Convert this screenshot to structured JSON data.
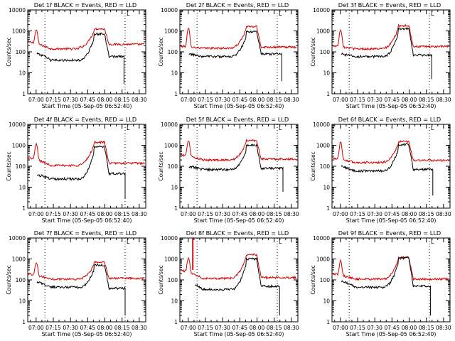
{
  "figure": {
    "colors": {
      "events": "#000000",
      "lld": "#d40000",
      "axis": "#000000",
      "background": "#ffffff"
    }
  },
  "chart_data": [
    {
      "type": "line",
      "detector": "1f",
      "title": "Det 1f BLACK = Events, RED = LLD",
      "xlabel": "Start Time (05-Sep-05 06:52:40)",
      "ylabel": "Counts/sec",
      "x_ticks": [
        "07:00",
        "07:15",
        "07:30",
        "07:45",
        "08:00",
        "08:15",
        "08:30"
      ],
      "x_tick_minutes": [
        7.33,
        22.33,
        37.33,
        52.33,
        67.33,
        82.33,
        97.33
      ],
      "xlim_minutes": [
        0,
        103
      ],
      "y_ticks": [
        "1",
        "10",
        "100",
        "1000",
        "10000"
      ],
      "ylim": [
        1,
        10000
      ],
      "yscale": "log",
      "marker_lines_minutes": [
        15,
        85
      ],
      "marker_label": "L",
      "lld_profile": {
        "base": 310,
        "flare_peak": 900,
        "flare_center_min": 7.5,
        "plateau": 1250,
        "plateau_start": 58,
        "plateau_end": 67,
        "floor": 140,
        "tail": 230,
        "end_min": 102
      },
      "events_profile": {
        "start_min": 8,
        "start_value": 85,
        "floor": 40,
        "plateau": 720,
        "plateau_start": 58,
        "plateau_end": 67,
        "tail": 60,
        "cutoff_min": 84,
        "drop_to": 3
      }
    },
    {
      "type": "line",
      "detector": "2f",
      "title": "Det 2f BLACK = Events, RED = LLD",
      "xlabel": "Start Time (05-Sep-05 06:52:40)",
      "ylabel": "Counts/sec",
      "x_ticks": [
        "07:00",
        "07:15",
        "07:30",
        "07:45",
        "08:00",
        "08:15",
        "08:30"
      ],
      "x_tick_minutes": [
        7.33,
        22.33,
        37.33,
        52.33,
        67.33,
        82.33,
        97.33
      ],
      "xlim_minutes": [
        0,
        103
      ],
      "y_ticks": [
        "1",
        "10",
        "100",
        "1000",
        "10000"
      ],
      "ylim": [
        1,
        10000
      ],
      "yscale": "log",
      "marker_lines_minutes": [
        15,
        85
      ],
      "marker_label": "L",
      "lld_profile": {
        "base": 190,
        "flare_peak": 1100,
        "flare_center_min": 7.5,
        "plateau": 1600,
        "plateau_start": 58,
        "plateau_end": 67,
        "floor": 150,
        "tail": 170,
        "end_min": 102
      },
      "events_profile": {
        "start_min": 8,
        "start_value": 80,
        "floor": 60,
        "plateau": 900,
        "plateau_start": 58,
        "plateau_end": 67,
        "tail": 80,
        "cutoff_min": 89,
        "drop_to": 4
      }
    },
    {
      "type": "line",
      "detector": "3f",
      "title": "Det 3f BLACK = Events, RED = LLD",
      "xlabel": "Start Time (05-Sep-05 06:52:40)",
      "ylabel": "Counts/sec",
      "x_ticks": [
        "07:00",
        "07:15",
        "07:30",
        "07:45",
        "08:00",
        "08:15",
        "08:30"
      ],
      "x_tick_minutes": [
        7.33,
        22.33,
        37.33,
        52.33,
        67.33,
        82.33,
        97.33
      ],
      "xlim_minutes": [
        0,
        103
      ],
      "y_ticks": [
        "1",
        "10",
        "100",
        "1000",
        "10000"
      ],
      "ylim": [
        1,
        10000
      ],
      "yscale": "log",
      "marker_lines_minutes": [
        15,
        85
      ],
      "marker_label": "L",
      "lld_profile": {
        "base": 200,
        "flare_peak": 1000,
        "flare_center_min": 7.5,
        "plateau": 1800,
        "plateau_start": 58,
        "plateau_end": 67,
        "floor": 140,
        "tail": 180,
        "end_min": 102
      },
      "events_profile": {
        "start_min": 8,
        "start_value": 80,
        "floor": 60,
        "plateau": 1300,
        "plateau_start": 58,
        "plateau_end": 67,
        "tail": 70,
        "cutoff_min": 87,
        "drop_to": 5
      }
    },
    {
      "type": "line",
      "detector": "4f",
      "title": "Det 4f BLACK = Events, RED = LLD",
      "xlabel": "Start Time (05-Sep-05 06:52:40)",
      "ylabel": "Counts/sec",
      "x_ticks": [
        "07:00",
        "07:15",
        "07:30",
        "07:45",
        "08:00",
        "08:15",
        "08:30"
      ],
      "x_tick_minutes": [
        7.33,
        22.33,
        37.33,
        52.33,
        67.33,
        82.33,
        97.33
      ],
      "xlim_minutes": [
        0,
        103
      ],
      "y_ticks": [
        "1",
        "10",
        "100",
        "1000",
        "10000"
      ],
      "ylim": [
        1,
        10000
      ],
      "yscale": "log",
      "marker_lines_minutes": [
        15,
        85
      ],
      "marker_label": "L",
      "lld_profile": {
        "base": 260,
        "flare_peak": 950,
        "flare_center_min": 7.5,
        "plateau": 1400,
        "plateau_start": 58,
        "plateau_end": 67,
        "floor": 110,
        "tail": 140,
        "end_min": 102
      },
      "events_profile": {
        "start_min": 8,
        "start_value": 40,
        "floor": 25,
        "plateau": 850,
        "plateau_start": 58,
        "plateau_end": 67,
        "tail": 45,
        "cutoff_min": 85,
        "drop_to": 3
      }
    },
    {
      "type": "line",
      "detector": "5f",
      "title": "Det 5f BLACK = Events, RED = LLD",
      "xlabel": "Start Time (05-Sep-05 06:52:40)",
      "ylabel": "Counts/sec",
      "x_ticks": [
        "07:00",
        "07:15",
        "07:30",
        "07:45",
        "08:00",
        "08:15",
        "08:30"
      ],
      "x_tick_minutes": [
        7.33,
        22.33,
        37.33,
        52.33,
        67.33,
        82.33,
        97.33
      ],
      "xlim_minutes": [
        0,
        103
      ],
      "y_ticks": [
        "1",
        "10",
        "100",
        "1000",
        "10000"
      ],
      "ylim": [
        1,
        10000
      ],
      "yscale": "log",
      "marker_lines_minutes": [
        15,
        85
      ],
      "marker_label": "L",
      "lld_profile": {
        "base": 360,
        "flare_peak": 1400,
        "flare_center_min": 7.5,
        "plateau": 1700,
        "plateau_start": 58,
        "plateau_end": 67,
        "floor": 200,
        "tail": 220,
        "end_min": 102
      },
      "events_profile": {
        "start_min": 8,
        "start_value": 100,
        "floor": 70,
        "plateau": 1000,
        "plateau_start": 58,
        "plateau_end": 67,
        "tail": 80,
        "cutoff_min": 90,
        "drop_to": 6
      }
    },
    {
      "type": "line",
      "detector": "6f",
      "title": "Det 6f BLACK = Events, RED = LLD",
      "xlabel": "Start Time (05-Sep-05 06:52:40)",
      "ylabel": "Counts/sec",
      "x_ticks": [
        "07:00",
        "07:15",
        "07:30",
        "07:45",
        "08:00",
        "08:15",
        "08:30"
      ],
      "x_tick_minutes": [
        7.33,
        22.33,
        37.33,
        52.33,
        67.33,
        82.33,
        97.33
      ],
      "xlim_minutes": [
        0,
        103
      ],
      "y_ticks": [
        "1",
        "10",
        "100",
        "1000",
        "10000"
      ],
      "ylim": [
        1,
        10000
      ],
      "yscale": "log",
      "marker_lines_minutes": [
        15,
        85
      ],
      "marker_label": "L",
      "lld_profile": {
        "base": 250,
        "flare_peak": 1200,
        "flare_center_min": 7.5,
        "plateau": 1500,
        "plateau_start": 58,
        "plateau_end": 67,
        "floor": 150,
        "tail": 190,
        "end_min": 102
      },
      "events_profile": {
        "start_min": 8,
        "start_value": 100,
        "floor": 60,
        "plateau": 1100,
        "plateau_start": 58,
        "plateau_end": 67,
        "tail": 70,
        "cutoff_min": 88,
        "drop_to": 4
      }
    },
    {
      "type": "line",
      "detector": "7f",
      "title": "Det 7f BLACK = Events, RED = LLD",
      "xlabel": "Start Time (05-Sep-05 06:52:40)",
      "ylabel": "Counts/sec",
      "x_ticks": [
        "07:00",
        "07:15",
        "07:30",
        "07:45",
        "08:00",
        "08:15",
        "08:30"
      ],
      "x_tick_minutes": [
        7.33,
        22.33,
        37.33,
        52.33,
        67.33,
        82.33,
        97.33
      ],
      "xlim_minutes": [
        0,
        103
      ],
      "y_ticks": [
        "1",
        "10",
        "100",
        "1000",
        "10000"
      ],
      "ylim": [
        1,
        10000
      ],
      "yscale": "log",
      "marker_lines_minutes": [
        15,
        85
      ],
      "marker_label": "L",
      "lld_profile": {
        "base": 200,
        "flare_peak": 550,
        "flare_center_min": 7.5,
        "plateau": 700,
        "plateau_start": 58,
        "plateau_end": 67,
        "floor": 110,
        "tail": 120,
        "end_min": 102
      },
      "events_profile": {
        "start_min": 8,
        "start_value": 80,
        "floor": 45,
        "plateau": 520,
        "plateau_start": 58,
        "plateau_end": 67,
        "tail": 40,
        "cutoff_min": 85,
        "drop_to": 2
      }
    },
    {
      "type": "line",
      "detector": "8f",
      "title": "Det 8f BLACK = Events, RED = LLD",
      "xlabel": "Start Time (05-Sep-05 06:52:40)",
      "ylabel": "Counts/sec",
      "x_ticks": [
        "07:00",
        "07:15",
        "07:30",
        "07:45",
        "08:00",
        "08:15",
        "08:30"
      ],
      "x_tick_minutes": [
        7.33,
        22.33,
        37.33,
        52.33,
        67.33,
        82.33,
        97.33
      ],
      "xlim_minutes": [
        0,
        103
      ],
      "y_ticks": [
        "1",
        "10",
        "100",
        "1000",
        "10000"
      ],
      "ylim": [
        1,
        10000
      ],
      "yscale": "log",
      "marker_lines_minutes": [
        15,
        85
      ],
      "marker_label": "L",
      "lld_profile": {
        "base": 300,
        "flare_peak": 900,
        "flare_center_min": 7.5,
        "plateau": 1600,
        "plateau_start": 58,
        "plateau_end": 67,
        "floor": 120,
        "tail": 130,
        "end_min": 102,
        "spike_min": 11,
        "spike_value": 10000
      },
      "events_profile": {
        "start_min": 13,
        "start_value": 60,
        "floor": 35,
        "plateau": 1000,
        "plateau_start": 58,
        "plateau_end": 67,
        "tail": 50,
        "cutoff_min": 87,
        "drop_to": 2
      }
    },
    {
      "type": "line",
      "detector": "9f",
      "title": "Det 9f BLACK = Events, RED = LLD",
      "xlabel": "Start Time (05-Sep-05 06:52:40)",
      "ylabel": "Counts/sec",
      "x_ticks": [
        "07:00",
        "07:15",
        "07:30",
        "07:45",
        "08:00",
        "08:15",
        "08:30"
      ],
      "x_tick_minutes": [
        7.33,
        22.33,
        37.33,
        52.33,
        67.33,
        82.33,
        97.33
      ],
      "xlim_minutes": [
        0,
        103
      ],
      "y_ticks": [
        "1",
        "10",
        "100",
        "1000",
        "10000"
      ],
      "ylim": [
        1,
        10000
      ],
      "yscale": "log",
      "marker_lines_minutes": [
        15,
        85
      ],
      "marker_label": "L",
      "lld_profile": {
        "base": 200,
        "flare_peak": 650,
        "flare_center_min": 7.5,
        "plateau": 1200,
        "plateau_start": 58,
        "plateau_end": 67,
        "floor": 110,
        "tail": 110,
        "end_min": 102
      },
      "events_profile": {
        "start_min": 8,
        "start_value": 90,
        "floor": 45,
        "plateau": 1100,
        "plateau_start": 58,
        "plateau_end": 67,
        "tail": 50,
        "cutoff_min": 86,
        "drop_to": 2
      }
    }
  ]
}
